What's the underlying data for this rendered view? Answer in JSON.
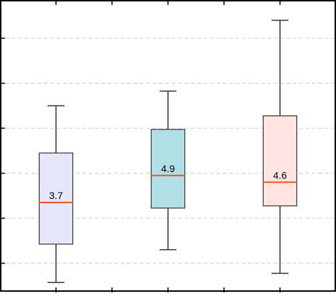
{
  "chart_data": {
    "type": "box",
    "title": "",
    "xlabel": "",
    "ylabel": "",
    "grid": {
      "y": true,
      "x": false,
      "style": "dashed"
    },
    "colors": {
      "median_line": "#f05a28",
      "edge": "#333333",
      "grid": "#cccccc",
      "frame": "#000000"
    },
    "boxes": [
      {
        "category": "",
        "fill": "#e6e6fa",
        "min": 0.15,
        "q1": 1.85,
        "median": 3.7,
        "q3": 5.9,
        "max": 8.0,
        "median_label": "3.7"
      },
      {
        "category": "",
        "fill": "#b0e0e6",
        "min": 1.6,
        "q1": 3.45,
        "median": 4.9,
        "q3": 6.95,
        "max": 8.65,
        "median_label": "4.9"
      },
      {
        "category": "",
        "fill": "#ffe4e1",
        "min": 0.55,
        "q1": 3.55,
        "median": 4.6,
        "q3": 7.55,
        "max": 11.8
      }
    ],
    "median_labels": [
      "3.7",
      "4.9",
      "4.6"
    ],
    "y_range": [
      -0.3,
      12.7
    ],
    "y_ticks": [
      1,
      3,
      5,
      7,
      9,
      11,
      13
    ],
    "x_ticks": [
      0.5,
      1,
      1.5,
      2,
      2.5,
      3
    ],
    "x_range": [
      0.5,
      3.5
    ]
  }
}
